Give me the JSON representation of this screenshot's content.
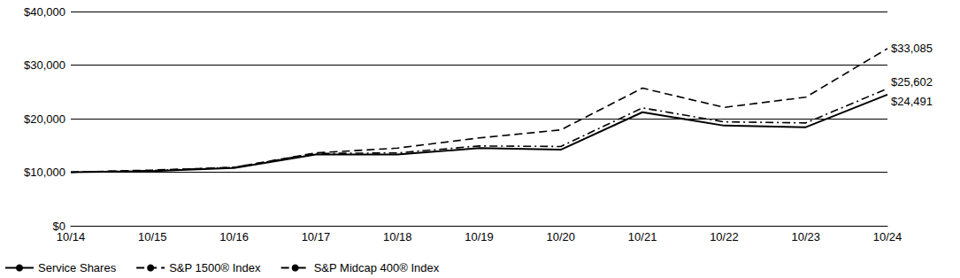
{
  "chart_data": {
    "type": "line",
    "categories": [
      "10/14",
      "10/15",
      "10/16",
      "10/17",
      "10/18",
      "10/19",
      "10/20",
      "10/21",
      "10/22",
      "10/23",
      "10/24"
    ],
    "series": [
      {
        "name": "Service Shares",
        "color": "#000000",
        "line_style": "solid",
        "values": [
          10000,
          10200,
          10800,
          13300,
          13300,
          14500,
          14200,
          21200,
          18700,
          18400,
          24491
        ]
      },
      {
        "name": "S&P 1500® Index",
        "color": "#000000",
        "line_style": "dashed",
        "values": [
          10000,
          10400,
          10900,
          13600,
          14500,
          16400,
          17900,
          25700,
          22100,
          24000,
          33085
        ]
      },
      {
        "name": "S&P Midcap 400® Index",
        "color": "#000000",
        "line_style": "dashdot",
        "values": [
          10000,
          10300,
          10900,
          13500,
          13600,
          14900,
          14800,
          22000,
          19400,
          19200,
          25602
        ]
      }
    ],
    "annotations": [
      {
        "text": "$33,085",
        "series": "S&P 1500® Index",
        "x": "10/24"
      },
      {
        "text": "$25,602",
        "series": "S&P Midcap 400® Index",
        "x": "10/24"
      },
      {
        "text": "$24,491",
        "series": "Service Shares",
        "x": "10/24"
      }
    ],
    "ylim": [
      0,
      40000
    ],
    "yticks": [
      {
        "value": 0,
        "label": "$0"
      },
      {
        "value": 10000,
        "label": "$10,000"
      },
      {
        "value": 20000,
        "label": "$20,000"
      },
      {
        "value": 30000,
        "label": "$30,000"
      },
      {
        "value": 40000,
        "label": "$40,000"
      }
    ],
    "grid": true,
    "legend": "bottom-left"
  }
}
